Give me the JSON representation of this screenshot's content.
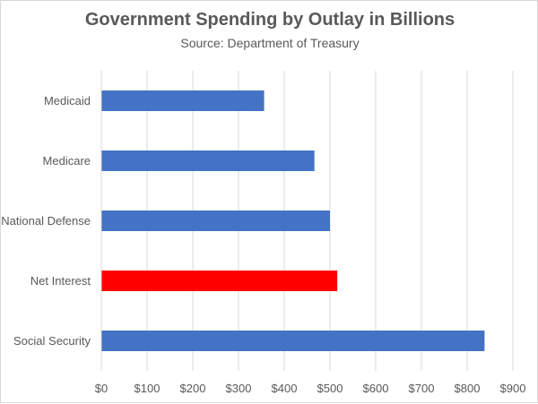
{
  "chart_data": {
    "type": "bar",
    "orientation": "horizontal",
    "title": "Government Spending by Outlay in Billions",
    "subtitle": "Source: Department of Treasury",
    "categories": [
      "Medicaid",
      "Medicare",
      "National Defense",
      "Net Interest",
      "Social Security"
    ],
    "values": [
      356,
      466,
      500,
      516,
      838
    ],
    "bar_colors": [
      "#4472C4",
      "#4472C4",
      "#4472C4",
      "#FF0000",
      "#4472C4"
    ],
    "xlim": [
      0,
      900
    ],
    "x_ticks": [
      0,
      100,
      200,
      300,
      400,
      500,
      600,
      700,
      800,
      900
    ],
    "x_tick_labels": [
      "$0",
      "$100",
      "$200",
      "$300",
      "$400",
      "$500",
      "$600",
      "$700",
      "$800",
      "$900"
    ],
    "grid": "vertical",
    "legend": "none"
  }
}
